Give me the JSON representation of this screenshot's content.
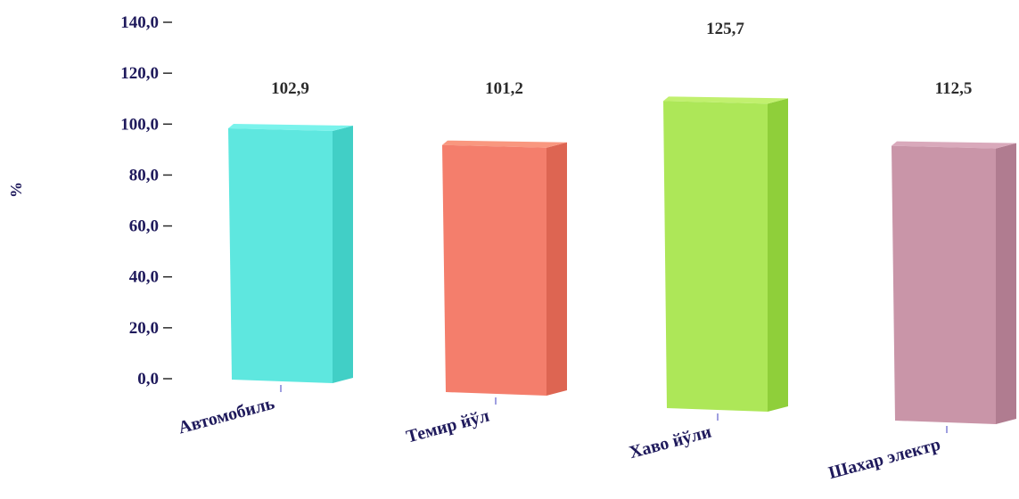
{
  "chart_data": {
    "type": "bar",
    "categories": [
      "Автомобиль",
      "Темир йўл",
      "Хаво йўли",
      "Шахар электр"
    ],
    "values": [
      102.9,
      101.2,
      125.7,
      112.5
    ],
    "value_labels": [
      "102,9",
      "101,2",
      "125,7",
      "112,5"
    ],
    "ylabel": "%",
    "ylim": [
      0,
      140
    ],
    "yticks": [
      "0,0",
      "20,0",
      "40,0",
      "60,0",
      "80,0",
      "100,0",
      "120,0",
      "140,0"
    ],
    "colors": [
      {
        "front": "#5ee7df",
        "side": "#41cfc6",
        "top": "#7af3ec"
      },
      {
        "front": "#f47e6c",
        "side": "#dd6552",
        "top": "#f9977f"
      },
      {
        "front": "#ade758",
        "side": "#8fcf3a",
        "top": "#c1f06e"
      },
      {
        "front": "#c995a8",
        "side": "#b07c90",
        "top": "#d9a9bb"
      }
    ],
    "grid": false,
    "legend": "none"
  }
}
